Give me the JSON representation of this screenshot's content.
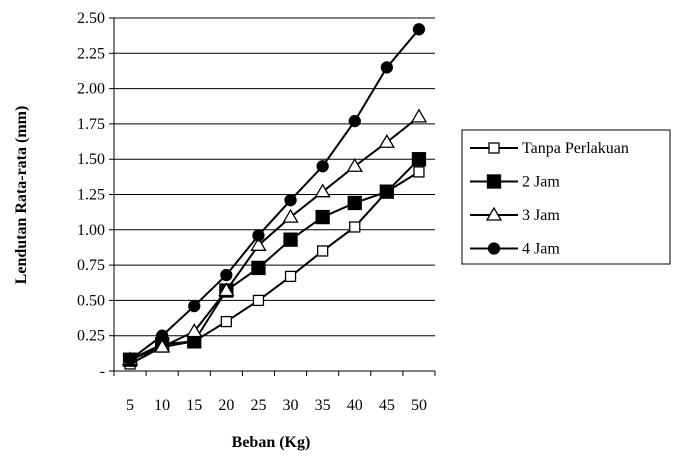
{
  "chart_data": {
    "type": "line",
    "title": "",
    "xlabel": "Beban (Kg)",
    "ylabel": "Lendutan Rata-rata (mm)",
    "x": [
      5,
      10,
      15,
      20,
      25,
      30,
      35,
      40,
      45,
      50
    ],
    "ylim": [
      0,
      2.5
    ],
    "y_ticks": [
      0,
      0.25,
      0.5,
      0.75,
      1.0,
      1.25,
      1.5,
      1.75,
      2.0,
      2.25,
      2.5
    ],
    "y_tick_labels": [
      "-",
      "0.25",
      "0.50",
      "0.75",
      "1.00",
      "1.25",
      "1.50",
      "1.75",
      "2.00",
      "2.25",
      "2.50"
    ],
    "grid": "horizontal",
    "legend_position": "right",
    "series": [
      {
        "name": "Tanpa Perlakuan",
        "marker": "square-open",
        "values": [
          0.05,
          0.17,
          0.21,
          0.35,
          0.5,
          0.67,
          0.85,
          1.02,
          1.27,
          1.41
        ]
      },
      {
        "name": "2 Jam",
        "marker": "square-filled",
        "values": [
          0.08,
          0.19,
          0.21,
          0.57,
          0.73,
          0.93,
          1.09,
          1.19,
          1.27,
          1.5
        ]
      },
      {
        "name": "3 Jam",
        "marker": "triangle-open",
        "values": [
          0.08,
          0.17,
          0.28,
          0.57,
          0.89,
          1.09,
          1.27,
          1.45,
          1.62,
          1.8
        ]
      },
      {
        "name": "4 Jam",
        "marker": "circle-filled",
        "values": [
          0.08,
          0.25,
          0.46,
          0.68,
          0.96,
          1.21,
          1.45,
          1.77,
          2.15,
          2.42
        ]
      }
    ]
  }
}
